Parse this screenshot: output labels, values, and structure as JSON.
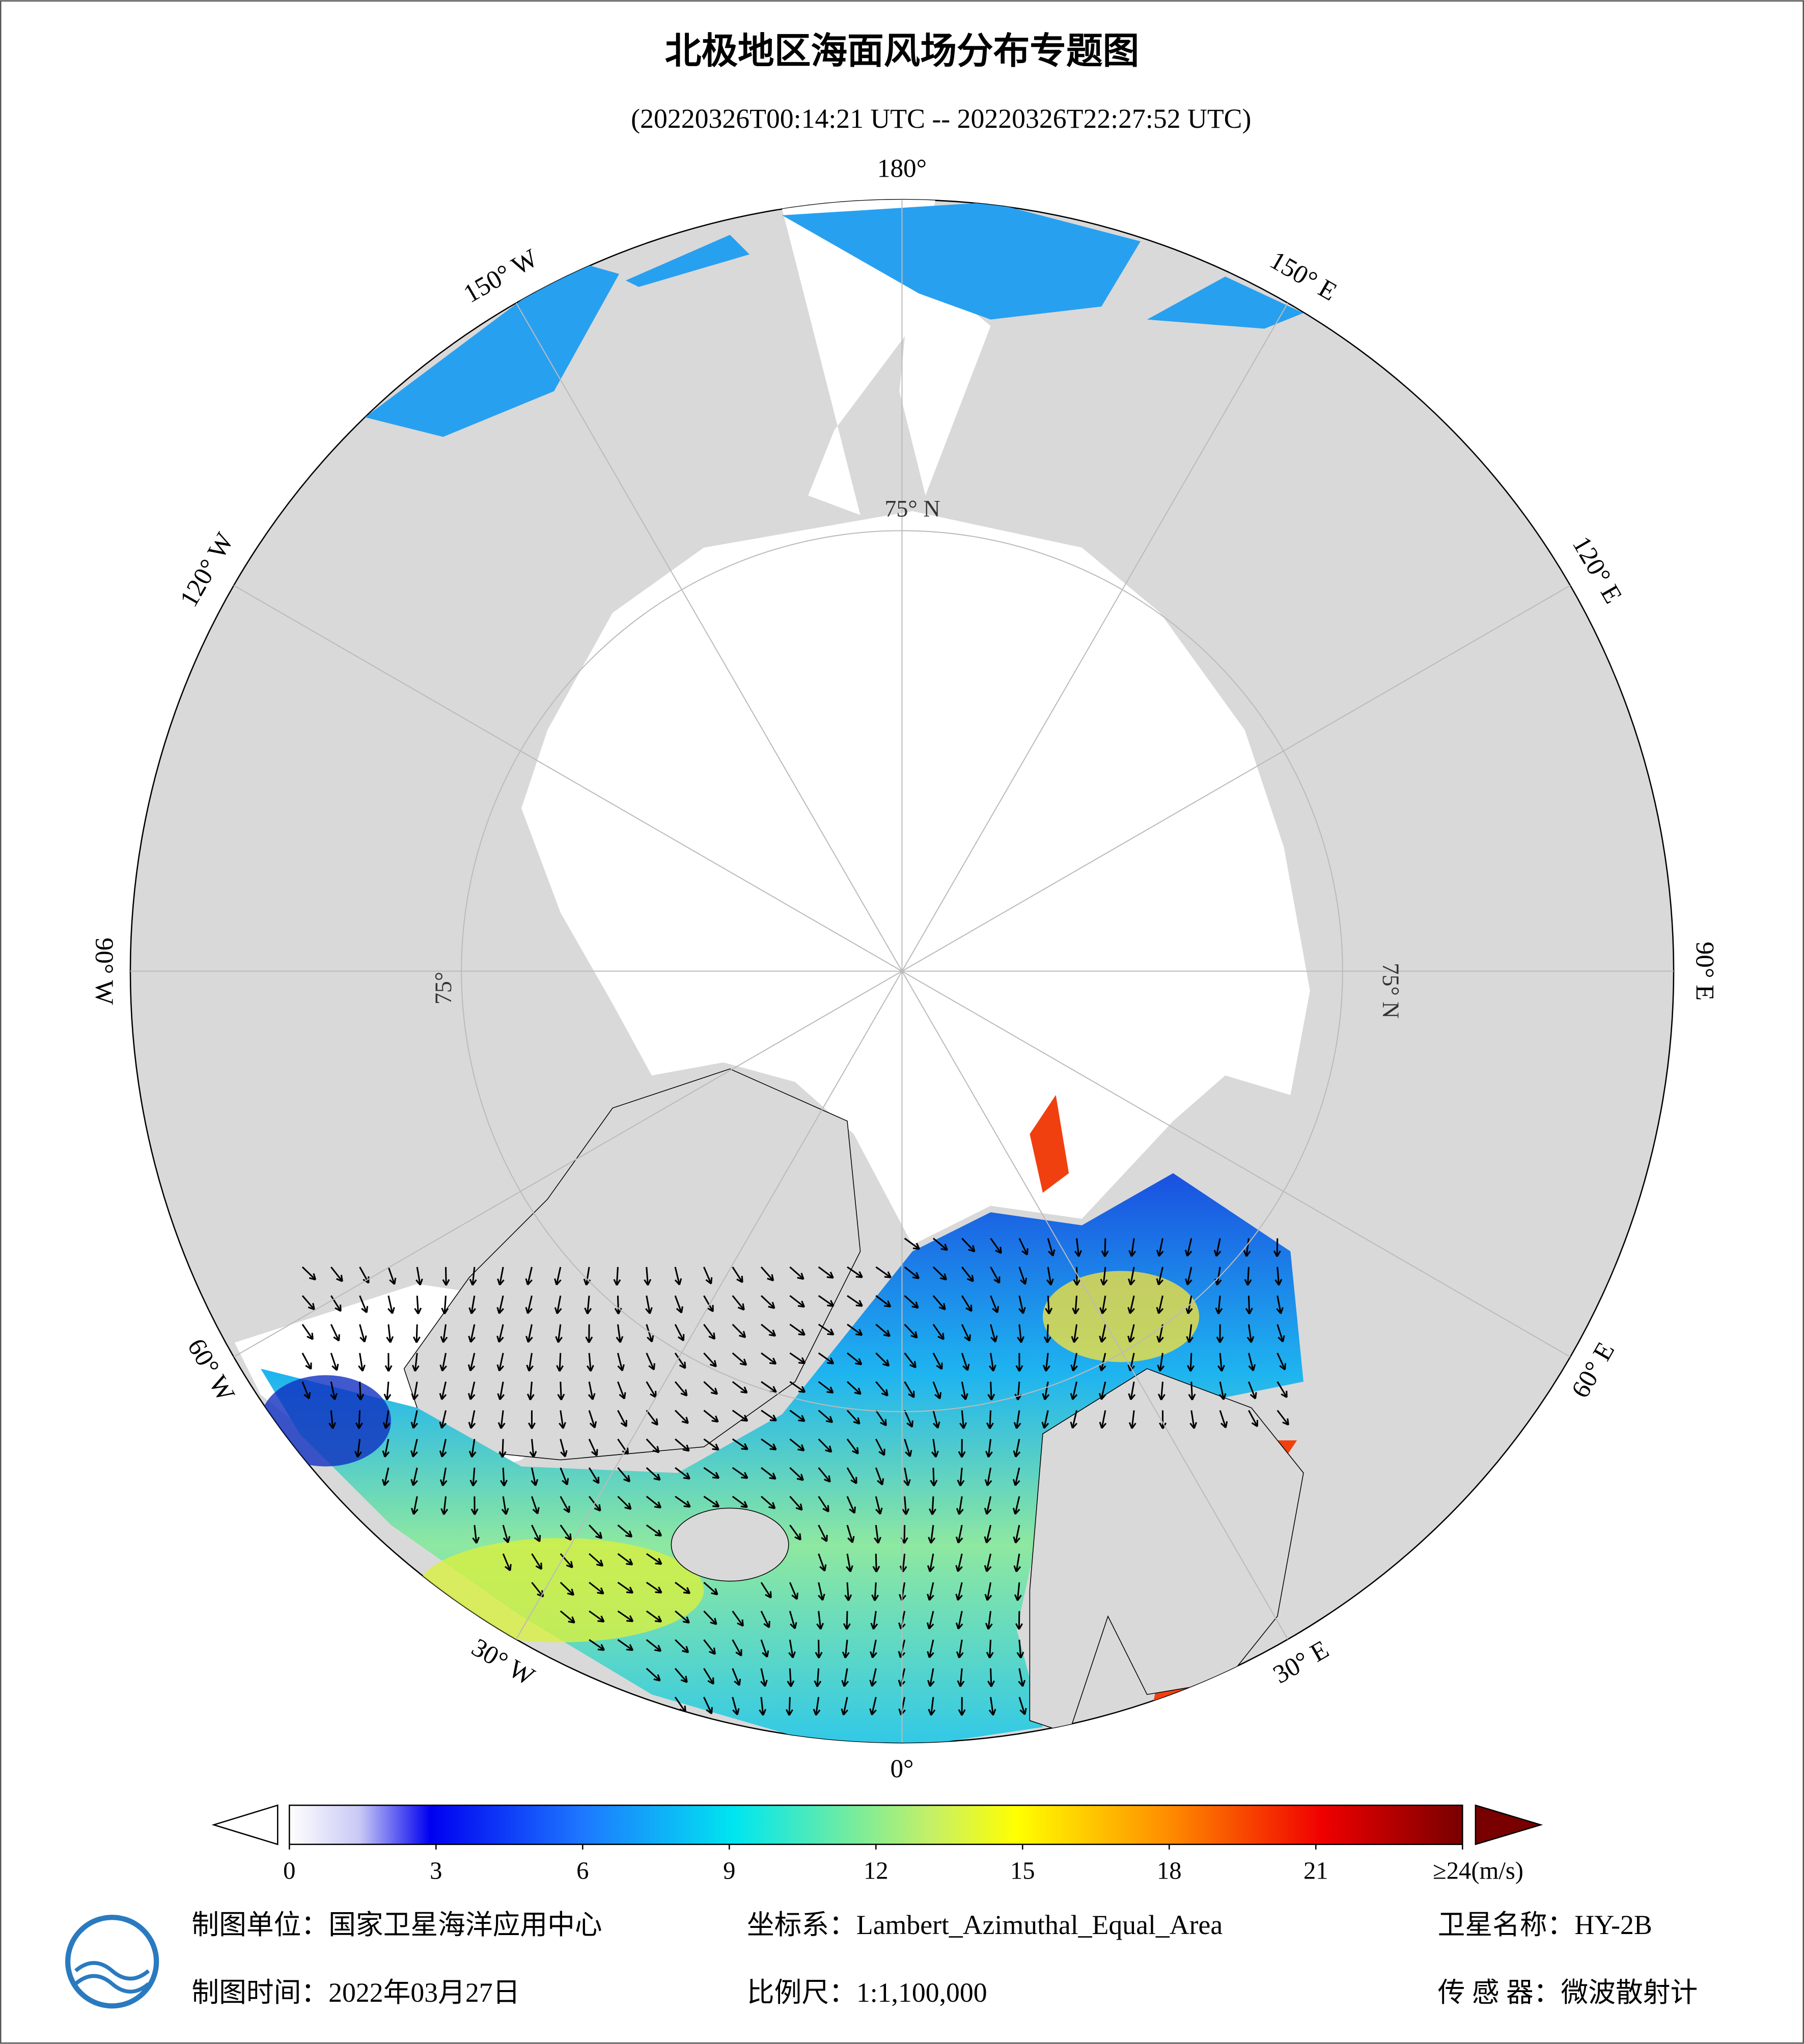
{
  "header": {
    "title": "北极地区海面风场分布专题图",
    "subtitle": "(20220326T00:14:21 UTC -- 20220326T22:27:52 UTC)"
  },
  "map": {
    "longitude_labels": [
      "0°",
      "30° E",
      "60° E",
      "90° E",
      "120° E",
      "150° E",
      "180°",
      "150° W",
      "120° W",
      "90° W",
      "60° W",
      "30° W"
    ],
    "latitude_labels": [
      "75° N",
      "75° N",
      "75°"
    ]
  },
  "colorbar": {
    "range": [
      0,
      24
    ],
    "ticks": [
      0,
      3,
      6,
      9,
      12,
      15,
      18,
      21,
      {
        "value": 24,
        "label": "≥24(m/s)"
      }
    ]
  },
  "footer": {
    "unit": "制图单位：国家卫星海洋应用中心",
    "crs": "坐标系：Lambert_Azimuthal_Equal_Area",
    "satellite": "卫星名称：HY-2B",
    "date": "制图时间：2022年03月27日",
    "scale": "比例尺：1:1,100,000",
    "sensor": "传 感 器：微波散射计"
  }
}
